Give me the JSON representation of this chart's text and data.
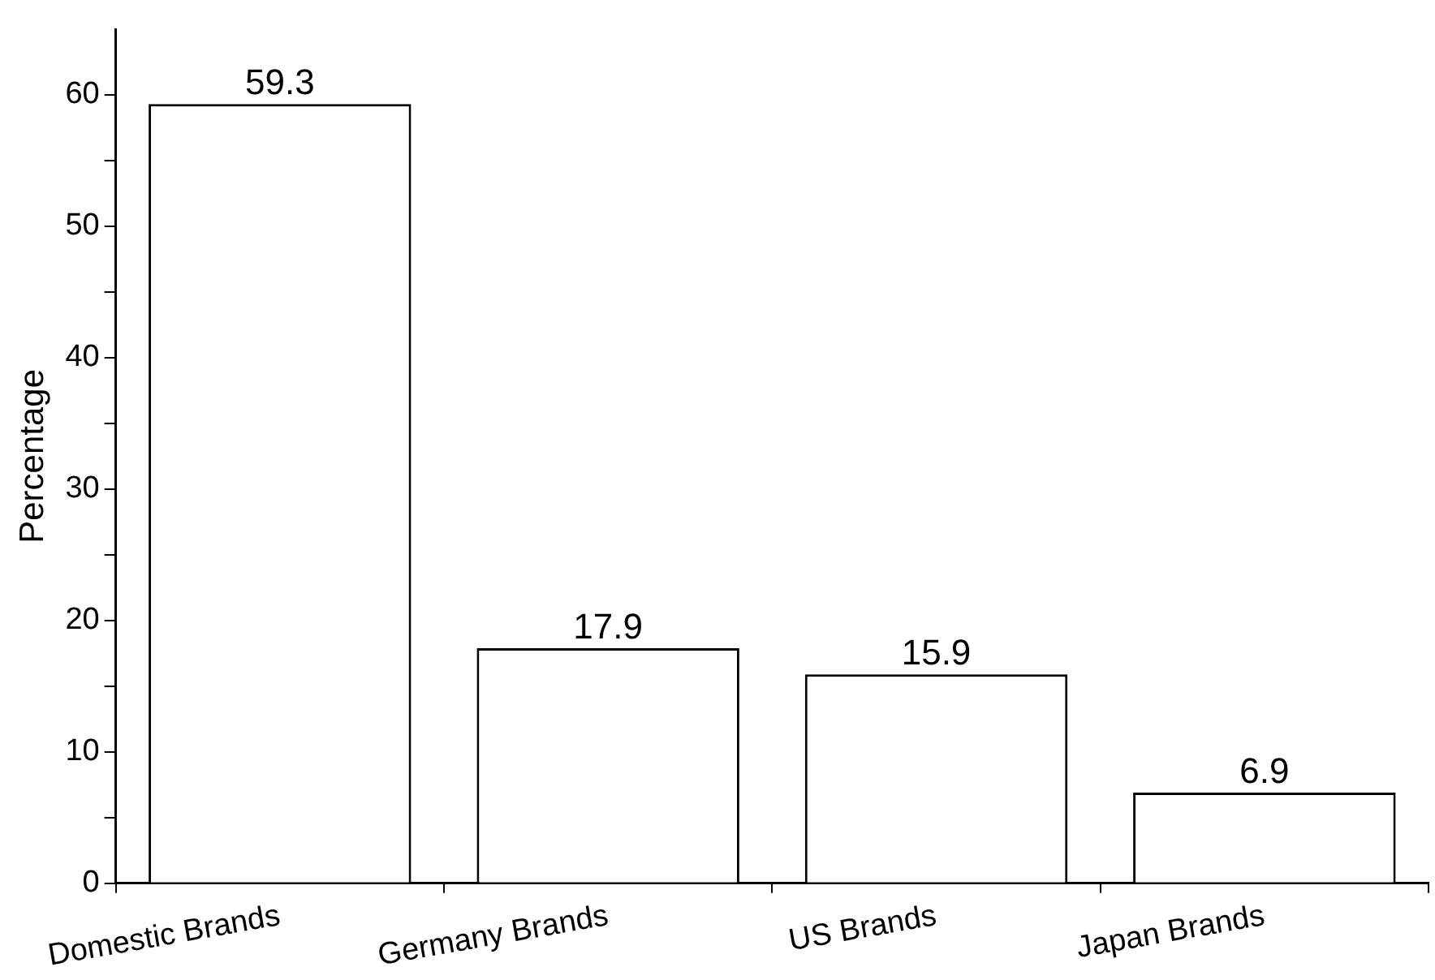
{
  "chart_data": {
    "type": "bar",
    "ylabel": "Percentage",
    "categories": [
      "Domestic Brands",
      "Germany Brands",
      "US Brands",
      "Japan Brands"
    ],
    "values": [
      59.3,
      17.9,
      15.9,
      6.9
    ],
    "color": "#ffffff",
    "ylim": [
      0,
      65
    ],
    "yticks": [
      0,
      {
        "value": 5,
        "label": null
      },
      10,
      {
        "value": 15,
        "label": null
      },
      20,
      {
        "value": 25,
        "label": null
      },
      30,
      {
        "value": 35,
        "label": null
      },
      40,
      {
        "value": 45,
        "label": null
      },
      50,
      {
        "value": 55,
        "label": null
      },
      60
    ],
    "grid": false,
    "legend": false,
    "data_labels": true
  }
}
